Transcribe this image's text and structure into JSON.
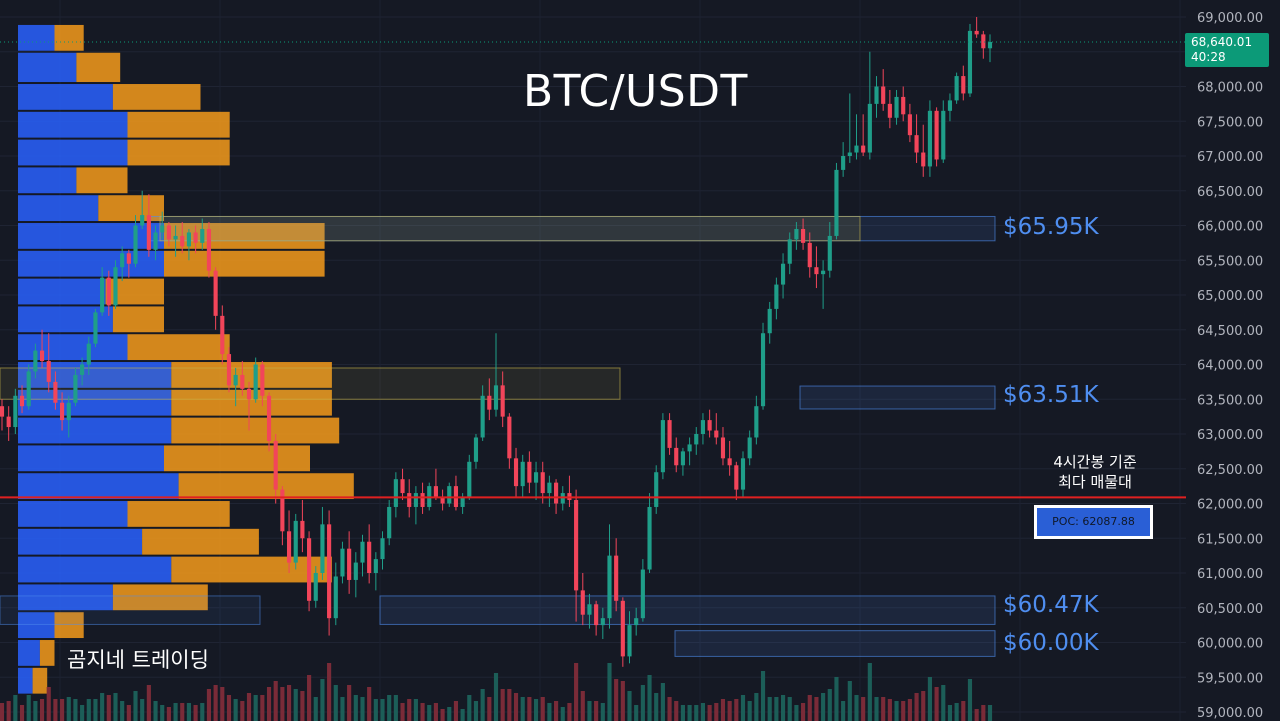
{
  "title": "BTC/USDT",
  "watermark": "곰지네 트레이딩",
  "poc_note": [
    "4시간봉 기준",
    "최다 매물대"
  ],
  "poc_label": "POC: 62087.88",
  "price_tag": {
    "price": "68,640.01",
    "countdown": "40:28"
  },
  "colors": {
    "background": "#151924",
    "up": "#1f9e89",
    "down": "#f2455a",
    "volume_up": "#1c5e58",
    "volume_down": "#7a2b38",
    "profile_blue": "#2962ff",
    "profile_orange": "#f59b1b",
    "poc_line": "#e02020",
    "zone_blue": "#4f8ef0",
    "zone_yellow": "#c8b44a",
    "axis_text": "#b2b5be"
  },
  "chart_data": {
    "type": "candlestick",
    "y_axis": {
      "ticks": [
        "69,000.00",
        "68,500.00",
        "68,000.00",
        "67,500.00",
        "67,000.00",
        "66,500.00",
        "66,000.00",
        "65,500.00",
        "65,000.00",
        "64,500.00",
        "64,000.00",
        "63,500.00",
        "63,000.00",
        "62,500.00",
        "62,000.00",
        "61,500.00",
        "61,000.00",
        "60,500.00",
        "60,000.00",
        "59,500.00",
        "59,000.00"
      ],
      "range": [
        59000,
        69000
      ]
    },
    "candles": [
      [
        63400,
        63500,
        63050,
        63250
      ],
      [
        63250,
        63400,
        62900,
        63100
      ],
      [
        63100,
        63650,
        63000,
        63550
      ],
      [
        63550,
        63700,
        63300,
        63400
      ],
      [
        63400,
        64000,
        63350,
        63900
      ],
      [
        63900,
        64300,
        63800,
        64200
      ],
      [
        64200,
        64500,
        63950,
        64050
      ],
      [
        64050,
        64450,
        63600,
        63750
      ],
      [
        63750,
        63900,
        63350,
        63450
      ],
      [
        63450,
        63600,
        63050,
        63200
      ],
      [
        63200,
        63550,
        62950,
        63450
      ],
      [
        63450,
        63950,
        63400,
        63850
      ],
      [
        63850,
        64100,
        63700,
        64000
      ],
      [
        64000,
        64400,
        63850,
        64300
      ],
      [
        64300,
        64800,
        64250,
        64750
      ],
      [
        64750,
        65400,
        64700,
        65250
      ],
      [
        65250,
        65350,
        64700,
        64850
      ],
      [
        64850,
        65500,
        64800,
        65400
      ],
      [
        65400,
        65700,
        65200,
        65600
      ],
      [
        65600,
        65650,
        65250,
        65450
      ],
      [
        65450,
        66150,
        65400,
        66000
      ],
      [
        66000,
        66500,
        65950,
        66150
      ],
      [
        66150,
        66450,
        65550,
        65650
      ],
      [
        65650,
        66000,
        65500,
        65900
      ],
      [
        65900,
        66200,
        65800,
        66000
      ],
      [
        66000,
        66050,
        65700,
        65800
      ],
      [
        65800,
        66000,
        65550,
        65850
      ],
      [
        65850,
        66050,
        65600,
        65700
      ],
      [
        65700,
        65950,
        65500,
        65900
      ],
      [
        65900,
        66000,
        65600,
        65750
      ],
      [
        65750,
        66100,
        65650,
        65950
      ],
      [
        65950,
        66050,
        65250,
        65350
      ],
      [
        65350,
        65400,
        64500,
        64700
      ],
      [
        64700,
        64850,
        64000,
        64150
      ],
      [
        64150,
        64250,
        63600,
        63700
      ],
      [
        63700,
        63950,
        63400,
        63850
      ],
      [
        63850,
        64050,
        63550,
        63650
      ],
      [
        63650,
        63750,
        63050,
        63500
      ],
      [
        63500,
        64100,
        63450,
        64000
      ],
      [
        64000,
        64050,
        63400,
        63550
      ],
      [
        63550,
        63600,
        62750,
        62900
      ],
      [
        62900,
        63000,
        62000,
        62200
      ],
      [
        62200,
        62250,
        61400,
        61600
      ],
      [
        61600,
        61900,
        61000,
        61150
      ],
      [
        61150,
        61850,
        61050,
        61750
      ],
      [
        61750,
        62050,
        61300,
        61500
      ],
      [
        61500,
        61600,
        60450,
        60600
      ],
      [
        60600,
        61100,
        60500,
        61000
      ],
      [
        61000,
        61950,
        60900,
        61700
      ],
      [
        61700,
        61900,
        60100,
        60350
      ],
      [
        60350,
        61150,
        60250,
        60950
      ],
      [
        60950,
        61450,
        60850,
        61350
      ],
      [
        61350,
        61600,
        60700,
        60900
      ],
      [
        60900,
        61300,
        60650,
        61150
      ],
      [
        61150,
        61550,
        60950,
        61450
      ],
      [
        61450,
        61700,
        60850,
        61000
      ],
      [
        61000,
        61300,
        60750,
        61200
      ],
      [
        61200,
        61600,
        61050,
        61500
      ],
      [
        61500,
        62050,
        61400,
        61950
      ],
      [
        61950,
        62450,
        61800,
        62350
      ],
      [
        62350,
        62500,
        62050,
        62150
      ],
      [
        62150,
        62350,
        61800,
        61950
      ],
      [
        61950,
        62250,
        61700,
        62150
      ],
      [
        62150,
        62300,
        61850,
        61950
      ],
      [
        61950,
        62300,
        61900,
        62250
      ],
      [
        62250,
        62500,
        62050,
        62100
      ],
      [
        62100,
        62200,
        61900,
        62000
      ],
      [
        62000,
        62300,
        61950,
        62250
      ],
      [
        62250,
        62400,
        61900,
        61950
      ],
      [
        61950,
        62150,
        61850,
        62100
      ],
      [
        62100,
        62700,
        62050,
        62600
      ],
      [
        62600,
        63000,
        62500,
        62950
      ],
      [
        62950,
        63700,
        62900,
        63550
      ],
      [
        63550,
        63800,
        63200,
        63350
      ],
      [
        63350,
        64450,
        63250,
        63700
      ],
      [
        63700,
        63900,
        63100,
        63250
      ],
      [
        63250,
        63300,
        62500,
        62650
      ],
      [
        62650,
        62800,
        62100,
        62250
      ],
      [
        62250,
        62700,
        62100,
        62600
      ],
      [
        62600,
        62750,
        62150,
        62300
      ],
      [
        62300,
        62600,
        62050,
        62450
      ],
      [
        62450,
        62600,
        62000,
        62150
      ],
      [
        62150,
        62400,
        61950,
        62300
      ],
      [
        62300,
        62350,
        61850,
        62000
      ],
      [
        62000,
        62250,
        61900,
        62150
      ],
      [
        62150,
        62400,
        61950,
        62050
      ],
      [
        62050,
        62200,
        60300,
        60750
      ],
      [
        60750,
        61000,
        60250,
        60400
      ],
      [
        60400,
        60700,
        60200,
        60550
      ],
      [
        60550,
        60600,
        60100,
        60250
      ],
      [
        60250,
        60500,
        60050,
        60350
      ],
      [
        60350,
        61700,
        60200,
        61250
      ],
      [
        61250,
        61500,
        60450,
        60600
      ],
      [
        60600,
        60650,
        59650,
        59800
      ],
      [
        59800,
        60450,
        59700,
        60250
      ],
      [
        60250,
        60500,
        60100,
        60350
      ],
      [
        60350,
        61200,
        60300,
        61050
      ],
      [
        61050,
        62150,
        61000,
        61950
      ],
      [
        61950,
        62550,
        61850,
        62450
      ],
      [
        62450,
        63300,
        62350,
        63200
      ],
      [
        63200,
        63300,
        62700,
        62800
      ],
      [
        62800,
        62950,
        62450,
        62550
      ],
      [
        62550,
        62800,
        62400,
        62750
      ],
      [
        62750,
        62950,
        62550,
        62850
      ],
      [
        62850,
        63100,
        62700,
        63000
      ],
      [
        63000,
        63300,
        62850,
        63200
      ],
      [
        63200,
        63350,
        62950,
        63050
      ],
      [
        63050,
        63300,
        62850,
        62950
      ],
      [
        62950,
        63100,
        62550,
        62650
      ],
      [
        62650,
        62900,
        62400,
        62550
      ],
      [
        62550,
        62600,
        62050,
        62200
      ],
      [
        62200,
        62750,
        62100,
        62650
      ],
      [
        62650,
        63050,
        62550,
        62950
      ],
      [
        62950,
        63550,
        62850,
        63400
      ],
      [
        63400,
        64600,
        63350,
        64450
      ],
      [
        64450,
        64900,
        64300,
        64800
      ],
      [
        64800,
        65250,
        64650,
        65150
      ],
      [
        65150,
        65600,
        64950,
        65450
      ],
      [
        65450,
        65900,
        65300,
        65800
      ],
      [
        65800,
        66050,
        65650,
        65950
      ],
      [
        65950,
        66100,
        65650,
        65750
      ],
      [
        65750,
        65900,
        65250,
        65400
      ],
      [
        65400,
        65700,
        65100,
        65300
      ],
      [
        65300,
        65500,
        64800,
        65350
      ],
      [
        65350,
        66050,
        65250,
        65850
      ],
      [
        65850,
        66900,
        65800,
        66800
      ],
      [
        66800,
        67200,
        66700,
        67000
      ],
      [
        67000,
        67900,
        66900,
        67050
      ],
      [
        67050,
        67600,
        66950,
        67150
      ],
      [
        67150,
        67600,
        67000,
        67050
      ],
      [
        67050,
        68500,
        66950,
        67750
      ],
      [
        67750,
        68150,
        67550,
        68000
      ],
      [
        68000,
        68250,
        67650,
        67750
      ],
      [
        67750,
        67950,
        67400,
        67550
      ],
      [
        67550,
        67950,
        67450,
        67850
      ],
      [
        67850,
        68000,
        67500,
        67600
      ],
      [
        67600,
        67750,
        67200,
        67300
      ],
      [
        67300,
        67600,
        66900,
        67050
      ],
      [
        67050,
        67450,
        66700,
        66850
      ],
      [
        66850,
        67800,
        66700,
        67650
      ],
      [
        67650,
        67700,
        66850,
        66950
      ],
      [
        66950,
        67800,
        66900,
        67650
      ],
      [
        67650,
        67900,
        67500,
        67800
      ],
      [
        67800,
        68200,
        67750,
        68150
      ],
      [
        68150,
        68300,
        67800,
        67900
      ],
      [
        67900,
        68900,
        67850,
        68800
      ],
      [
        68800,
        69000,
        68700,
        68750
      ],
      [
        68750,
        68800,
        68400,
        68550
      ],
      [
        68550,
        68750,
        68350,
        68640
      ]
    ],
    "volume_profile": [
      [
        68900,
        68500,
        5,
        4
      ],
      [
        68500,
        68050,
        8,
        6
      ],
      [
        68050,
        67650,
        13,
        12
      ],
      [
        67650,
        67250,
        15,
        14
      ],
      [
        67250,
        66850,
        15,
        14
      ],
      [
        66850,
        66450,
        8,
        7
      ],
      [
        66450,
        66050,
        11,
        9
      ],
      [
        66050,
        65650,
        20,
        22
      ],
      [
        65650,
        65250,
        20,
        22
      ],
      [
        65250,
        64850,
        12,
        8
      ],
      [
        64850,
        64450,
        13,
        7
      ],
      [
        64450,
        64050,
        15,
        14
      ],
      [
        64050,
        63650,
        21,
        22
      ],
      [
        63650,
        63250,
        21,
        22
      ],
      [
        63250,
        62850,
        21,
        23
      ],
      [
        62850,
        62450,
        20,
        20
      ],
      [
        62450,
        62050,
        22,
        24
      ],
      [
        62050,
        61650,
        15,
        14
      ],
      [
        61650,
        61250,
        17,
        16
      ],
      [
        61250,
        60850,
        21,
        22
      ],
      [
        60850,
        60450,
        13,
        13
      ],
      [
        60450,
        60050,
        5,
        4
      ],
      [
        60050,
        59650,
        3,
        2
      ],
      [
        59650,
        59250,
        2,
        2
      ]
    ],
    "resistance_zones": [
      {
        "label": "$65.95K",
        "top": 66130,
        "bottom": 65780
      },
      {
        "label": "$63.51K",
        "top": 63690,
        "bottom": 63360
      },
      {
        "label": "$60.47K",
        "top": 60670,
        "bottom": 60260
      },
      {
        "label": "$60.00K",
        "top": 60170,
        "bottom": 59800
      }
    ],
    "poc_price": 62087.88,
    "current_price": 68640.01
  }
}
